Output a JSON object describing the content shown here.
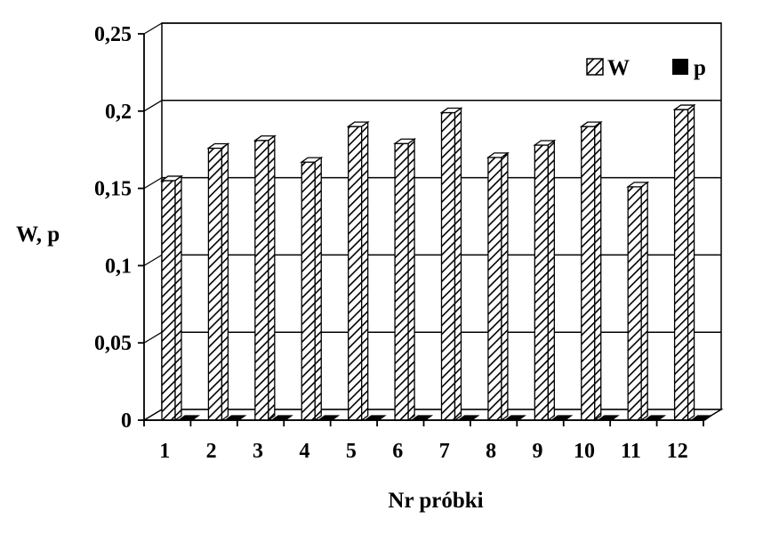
{
  "chart_data": {
    "type": "bar",
    "xlabel": "Nr próbki",
    "ylabel": "W, p",
    "ylim": [
      0,
      0.25
    ],
    "yticks": [
      "0",
      "0,05",
      "0,1",
      "0,15",
      "0,2",
      "0,25"
    ],
    "grid": true,
    "legend_position": "top-right",
    "categories": [
      "1",
      "2",
      "3",
      "4",
      "5",
      "6",
      "7",
      "8",
      "9",
      "10",
      "11",
      "12"
    ],
    "series": [
      {
        "name": "W",
        "fill": "hatched",
        "values": [
          0.155,
          0.176,
          0.181,
          0.167,
          0.19,
          0.179,
          0.199,
          0.17,
          0.178,
          0.19,
          0.151,
          0.201
        ]
      },
      {
        "name": "p",
        "fill": "solid",
        "values": [
          0,
          0,
          0,
          0,
          0,
          0,
          0,
          0,
          0,
          0,
          0,
          0
        ]
      }
    ]
  }
}
